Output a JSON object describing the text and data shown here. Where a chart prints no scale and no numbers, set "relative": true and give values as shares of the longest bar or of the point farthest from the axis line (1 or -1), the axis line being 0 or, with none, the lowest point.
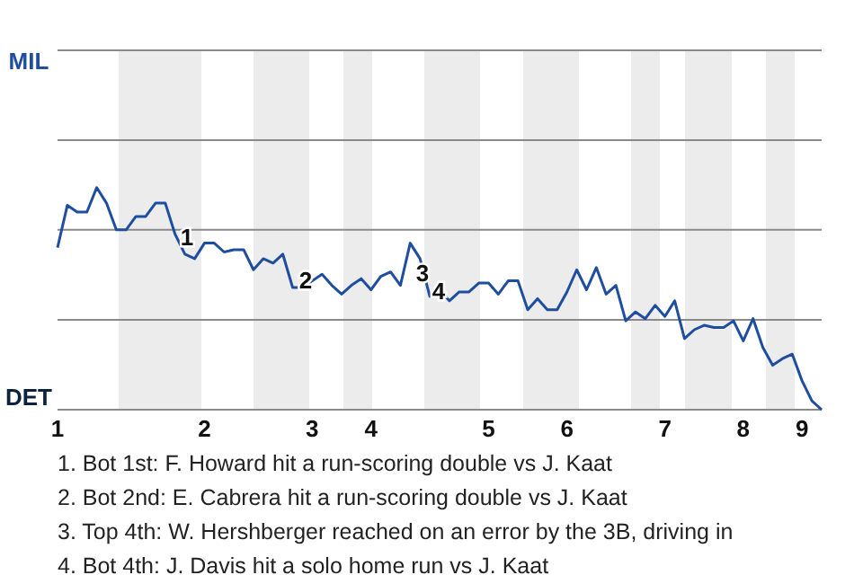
{
  "chart_data": {
    "type": "line",
    "relative": true,
    "categories": [
      "1",
      null,
      null,
      null,
      null,
      null,
      null,
      null,
      null,
      null,
      null,
      null,
      null,
      null,
      null,
      "2",
      null,
      null,
      null,
      null,
      null,
      null,
      null,
      null,
      null,
      null,
      "3",
      null,
      null,
      null,
      null,
      null,
      "4",
      null,
      null,
      null,
      null,
      null,
      null,
      null,
      null,
      null,
      null,
      null,
      "5",
      null,
      null,
      null,
      null,
      null,
      null,
      null,
      "6",
      null,
      null,
      null,
      null,
      null,
      null,
      null,
      null,
      null,
      "7",
      null,
      null,
      null,
      null,
      null,
      null,
      null,
      "8",
      null,
      null,
      null,
      null,
      null,
      "9",
      null,
      null
    ],
    "ref_lines": [
      {
        "axis": "y",
        "value": 0.405,
        "color": "#8a8a8a"
      },
      {
        "axis": "y",
        "value": 0.81,
        "color": "#8a8a8a"
      }
    ],
    "marker": "none",
    "line_style": "solid",
    "series": [
      {
        "color": "#1f4ea0",
        "values": [
          0.73,
          0.92,
          0.89,
          0.89,
          1,
          0.93,
          0.81,
          0.81,
          0.87,
          0.87,
          0.93,
          0.93,
          0.79,
          0.7,
          0.68,
          0.75,
          0.75,
          0.71,
          0.72,
          0.72,
          0.63,
          0.68,
          0.66,
          0.7,
          0.55,
          0.55,
          0.58,
          0.61,
          0.56,
          0.52,
          0.56,
          0.59,
          0.54,
          0.6,
          0.62,
          0.56,
          0.75,
          0.68,
          0.51,
          0.54,
          0.49,
          0.53,
          0.53,
          0.57,
          0.57,
          0.52,
          0.58,
          0.58,
          0.45,
          0.5,
          0.45,
          0.45,
          0.53,
          0.63,
          0.54,
          0.64,
          0.52,
          0.56,
          0.4,
          0.44,
          0.41,
          0.47,
          0.42,
          0.49,
          0.32,
          0.36,
          0.38,
          0.37,
          0.37,
          0.4,
          0.31,
          0.41,
          0.28,
          0.2,
          0.23,
          0.25,
          0.13,
          0.04,
          0
        ]
      }
    ],
    "annotations": [
      "MIL",
      "DET",
      "1",
      "2",
      "3",
      "4",
      "1. Bot 1st: F. Howard hit a run-scoring double vs J. Kaat",
      "2. Bot 2nd: E. Cabrera hit a run-scoring double vs J. Kaat",
      "3. Top 4th: W. Hershberger reached on an error by the 3B, driving in",
      "4. Bot 4th: J. Davis hit a solo home run vs J. Kaat"
    ]
  }
}
